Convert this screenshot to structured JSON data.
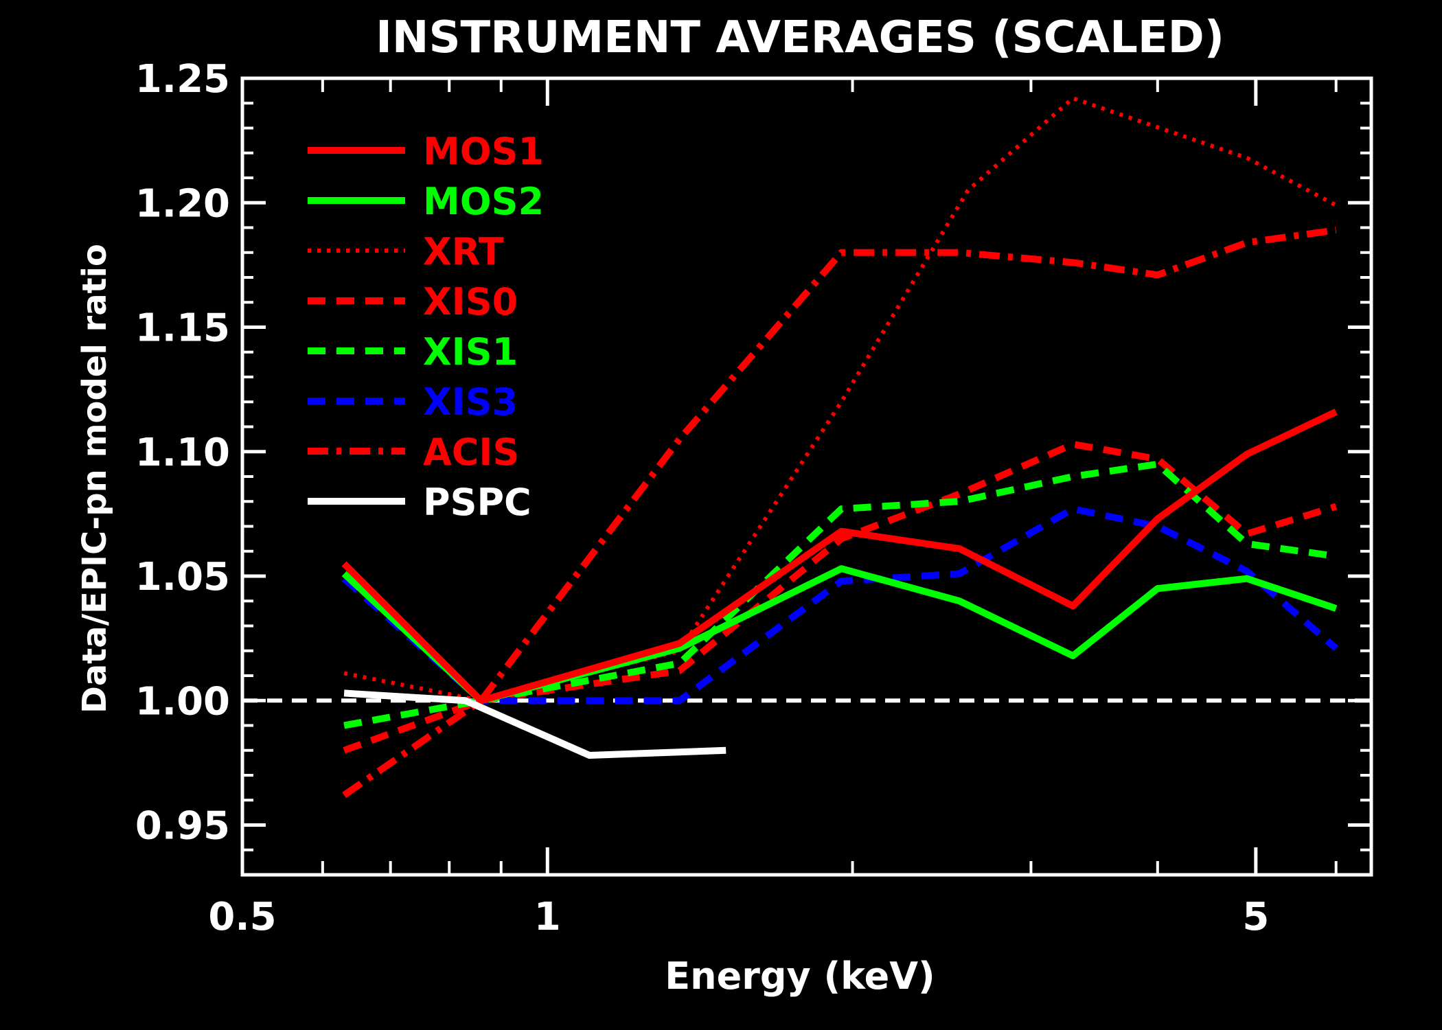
{
  "chart_data": {
    "type": "line",
    "title": "INSTRUMENT AVERAGES (SCALED)",
    "xlabel": "Energy (keV)",
    "ylabel": "Data/EPIC-pn model ratio",
    "xscale": "log",
    "xlim": [
      0.5,
      6.5
    ],
    "ylim": [
      0.93,
      1.25
    ],
    "xticks": [
      {
        "value": 0.5,
        "label": "0.5"
      },
      {
        "value": 1,
        "label": "1"
      },
      {
        "value": 5,
        "label": "5"
      }
    ],
    "xminor": [
      0.6,
      0.7,
      0.8,
      0.9,
      2,
      3,
      4,
      6
    ],
    "yticks": [
      {
        "value": 0.95,
        "label": "0.95"
      },
      {
        "value": 1.0,
        "label": "1.00"
      },
      {
        "value": 1.05,
        "label": "1.05"
      },
      {
        "value": 1.1,
        "label": "1.10"
      },
      {
        "value": 1.15,
        "label": "1.15"
      },
      {
        "value": 1.2,
        "label": "1.20"
      },
      {
        "value": 1.25,
        "label": "1.25"
      }
    ],
    "yminor_step": 0.01,
    "reference_line": {
      "y": 1.0,
      "color": "#ffffff",
      "dash": "dashed"
    },
    "legend_position": "top-left",
    "series": [
      {
        "name": "MOS1",
        "color": "#ff0000",
        "dash": "solid",
        "x": [
          0.63,
          0.86,
          1.35,
          1.95,
          2.55,
          3.3,
          4.0,
          4.9,
          6.0
        ],
        "y": [
          1.055,
          1.0,
          1.023,
          1.068,
          1.061,
          1.038,
          1.073,
          1.099,
          1.116
        ]
      },
      {
        "name": "MOS2",
        "color": "#00ff00",
        "dash": "solid",
        "x": [
          0.63,
          0.86,
          1.35,
          1.95,
          2.55,
          3.3,
          4.0,
          4.9,
          6.0
        ],
        "y": [
          1.051,
          1.0,
          1.021,
          1.053,
          1.04,
          1.018,
          1.045,
          1.049,
          1.037
        ]
      },
      {
        "name": "XRT",
        "color": "#ff0000",
        "dash": "dotted",
        "x": [
          0.63,
          0.86,
          1.35,
          1.95,
          2.6,
          3.3,
          4.9,
          6.0
        ],
        "y": [
          1.011,
          1.0,
          1.02,
          1.12,
          1.205,
          1.242,
          1.218,
          1.199
        ]
      },
      {
        "name": "XIS0",
        "color": "#ff0000",
        "dash": "dashed",
        "x": [
          0.63,
          0.86,
          1.35,
          1.95,
          2.55,
          3.3,
          4.0,
          4.9,
          6.0
        ],
        "y": [
          0.98,
          1.0,
          1.012,
          1.065,
          1.083,
          1.103,
          1.097,
          1.067,
          1.078
        ]
      },
      {
        "name": "XIS1",
        "color": "#00ff00",
        "dash": "dashed",
        "x": [
          0.63,
          0.86,
          1.35,
          1.95,
          2.55,
          3.3,
          4.0,
          4.9,
          6.0
        ],
        "y": [
          0.99,
          1.0,
          1.015,
          1.077,
          1.08,
          1.09,
          1.095,
          1.063,
          1.058
        ]
      },
      {
        "name": "XIS3",
        "color": "#0000ff",
        "dash": "dashed",
        "x": [
          0.63,
          0.86,
          1.35,
          1.95,
          2.55,
          3.3,
          4.0,
          4.9,
          6.0
        ],
        "y": [
          1.049,
          1.0,
          1.0,
          1.048,
          1.051,
          1.077,
          1.07,
          1.052,
          1.021
        ]
      },
      {
        "name": "ACIS",
        "color": "#ff0000",
        "dash": "dashdot",
        "x": [
          0.63,
          0.86,
          1.35,
          1.95,
          2.55,
          3.3,
          4.0,
          4.9,
          6.0
        ],
        "y": [
          0.962,
          1.0,
          1.105,
          1.18,
          1.18,
          1.176,
          1.171,
          1.184,
          1.189
        ]
      },
      {
        "name": "PSPC",
        "color": "#ffffff",
        "dash": "solid",
        "x": [
          0.63,
          0.83,
          1.1,
          1.5
        ],
        "y": [
          1.003,
          1.0,
          0.978,
          0.98
        ]
      }
    ]
  }
}
